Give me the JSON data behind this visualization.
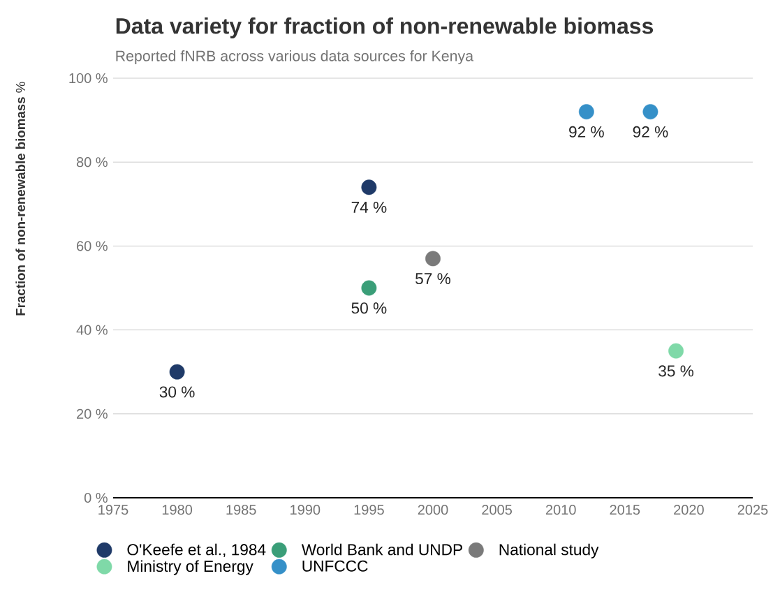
{
  "chart_data": {
    "type": "scatter",
    "title": "Data variety for fraction of non-renewable biomass",
    "subtitle": "Reported fNRB across various data sources for Kenya",
    "ylabel": "**Fraction of non-renewable biomass** %",
    "xlim": [
      1975,
      2025
    ],
    "xticks": [
      1975,
      1980,
      1985,
      1990,
      1995,
      2000,
      2005,
      2010,
      2015,
      2020,
      2025
    ],
    "ylim": [
      0,
      100
    ],
    "yticks": [
      {
        "value": 0,
        "label": "0 %"
      },
      {
        "value": 20,
        "label": "20 %"
      },
      {
        "value": 40,
        "label": "40 %"
      },
      {
        "value": 60,
        "label": "60 %"
      },
      {
        "value": 80,
        "label": "80 %"
      },
      {
        "value": 100,
        "label": "100 %"
      }
    ],
    "grid": "y",
    "legend": "bottom",
    "series": [
      {
        "name": "O'Keefe et al., 1984",
        "color": "#1f3a68",
        "x": [
          1980,
          1995
        ],
        "values": [
          30,
          74
        ],
        "value_labels": [
          "30 %",
          "74 %"
        ]
      },
      {
        "name": "World Bank and UNDP",
        "color": "#3a9e78",
        "x": [
          1995
        ],
        "values": [
          50
        ],
        "value_labels": [
          "50 %"
        ]
      },
      {
        "name": "National study",
        "color": "#7a7a7a",
        "x": [
          2000
        ],
        "values": [
          57
        ],
        "value_labels": [
          "57 %"
        ]
      },
      {
        "name": "Ministry of Energy",
        "color": "#7fd9a8",
        "x": [
          2019
        ],
        "values": [
          35
        ],
        "value_labels": [
          "35 %"
        ]
      },
      {
        "name": "UNFCCC",
        "color": "#3590c8",
        "x": [
          2012,
          2017
        ],
        "values": [
          92,
          92
        ],
        "value_labels": [
          "92 %",
          "92 %"
        ]
      }
    ]
  }
}
